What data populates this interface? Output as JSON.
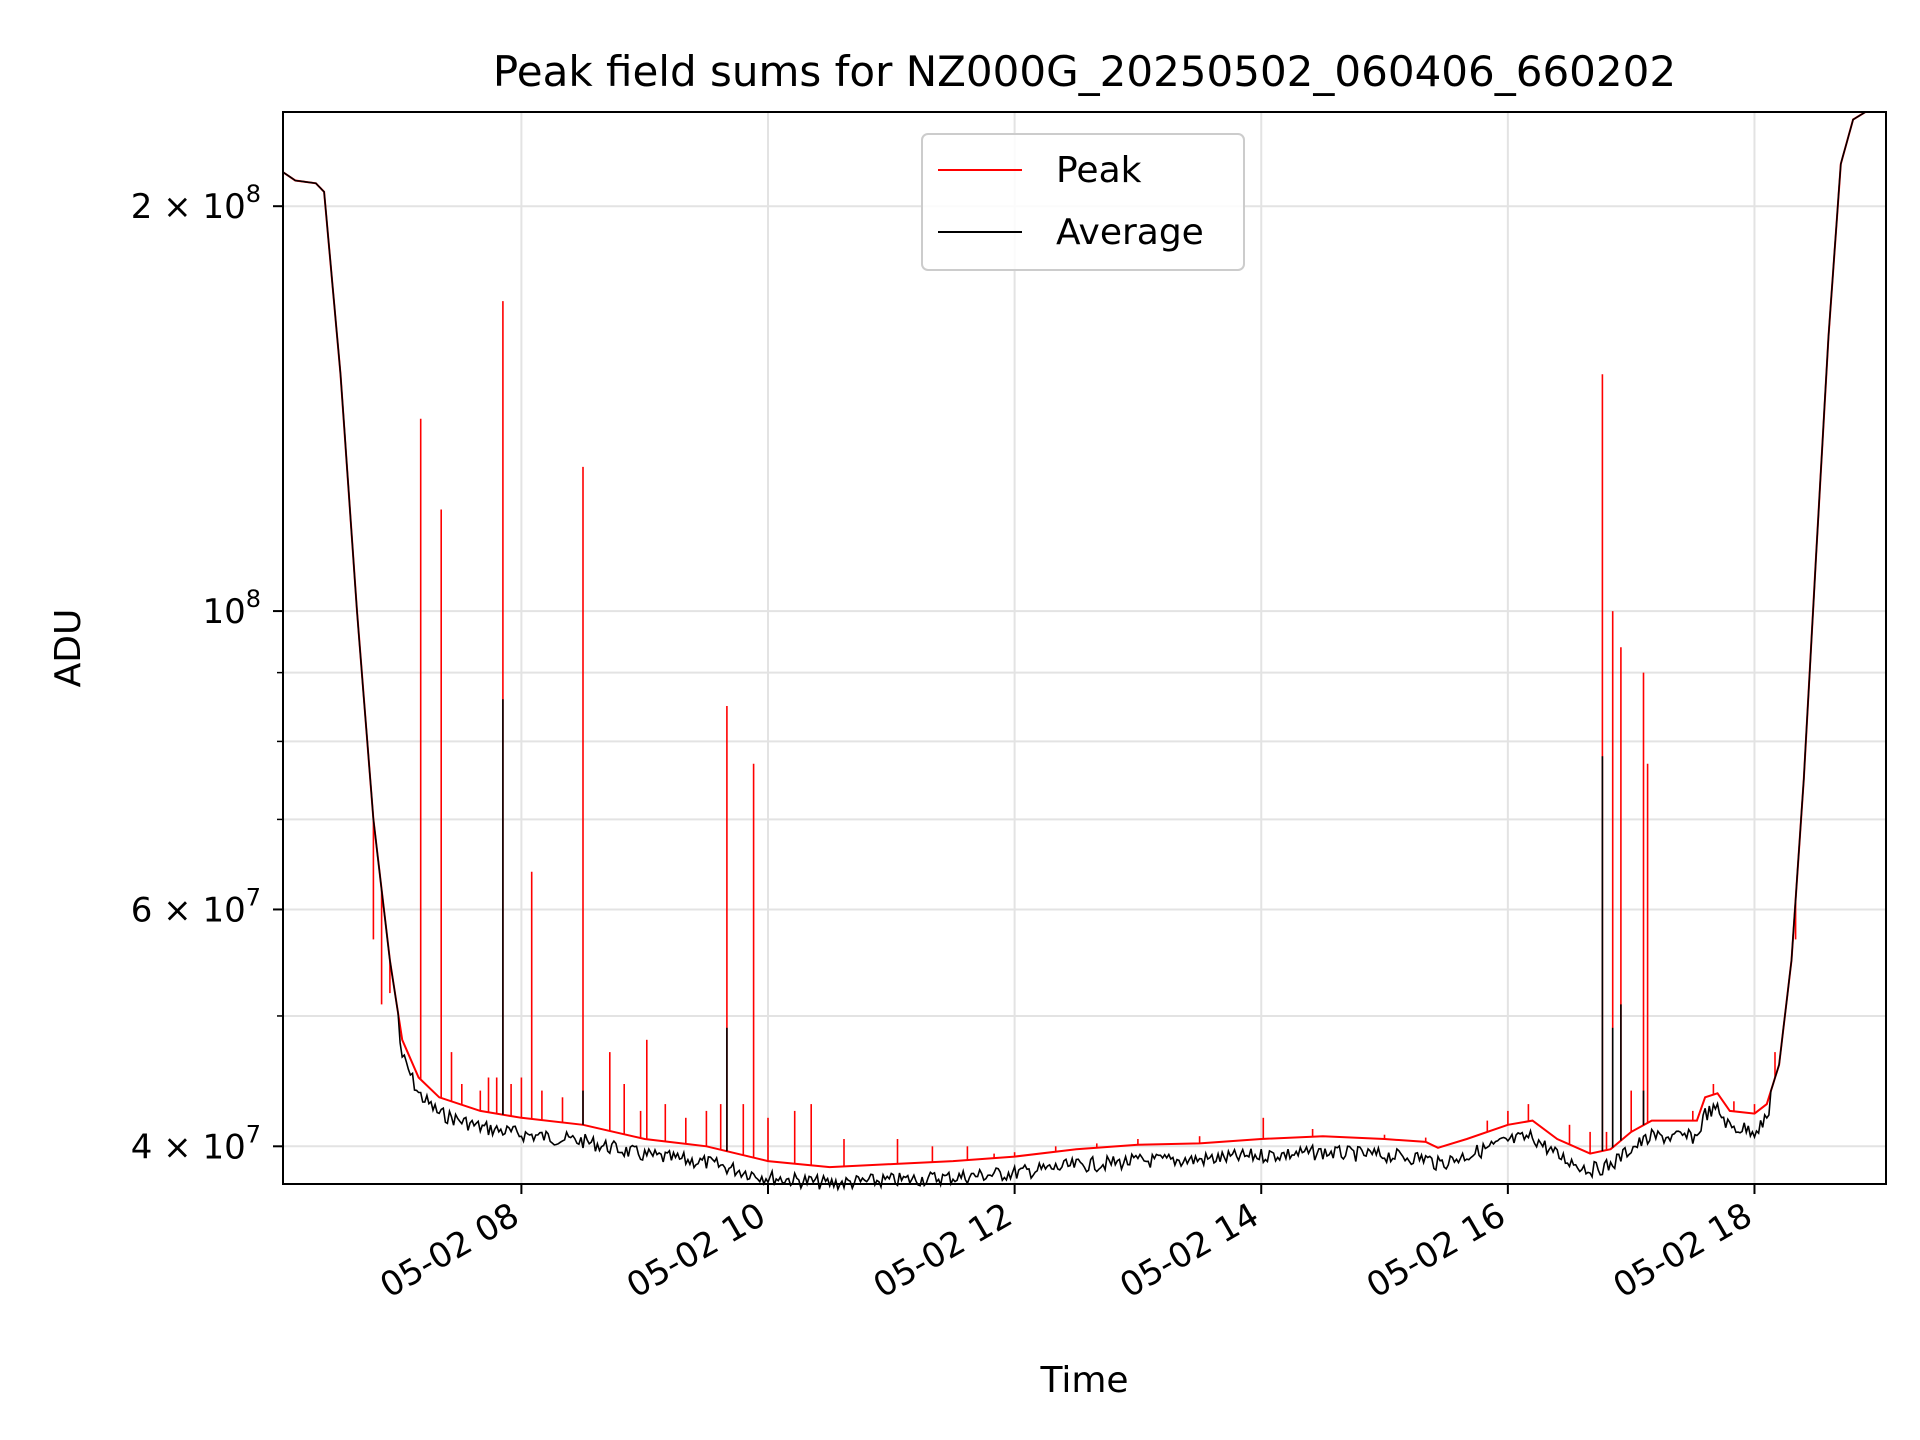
{
  "chart_data": {
    "type": "line",
    "title": "Peak field sums for NZ000G_20250502_060406_660202",
    "xlabel": "Time",
    "ylabel": "ADU",
    "x_ticks": [
      {
        "time": "05-02 08",
        "label": "05-02 08"
      },
      {
        "time": "05-02 10",
        "label": "05-02 10"
      },
      {
        "time": "05-02 12",
        "label": "05-02 12"
      },
      {
        "time": "05-02 14",
        "label": "05-02 14"
      },
      {
        "time": "05-02 16",
        "label": "05-02 16"
      },
      {
        "time": "05-02 18",
        "label": "05-02 18"
      }
    ],
    "xlim": [
      "05-02 06:04",
      "05-02 19:04"
    ],
    "y_scale": "log",
    "ylim": [
      37500000,
      235000000
    ],
    "y_ticks_major": [
      {
        "value": 40000000,
        "base": "4 × 10",
        "exp": "7"
      },
      {
        "value": 60000000,
        "base": "6 × 10",
        "exp": "7"
      },
      {
        "value": 100000000,
        "base": "10",
        "exp": "8"
      },
      {
        "value": 200000000,
        "base": "2 × 10",
        "exp": "8"
      }
    ],
    "y_ticks_minor": [
      50000000,
      70000000,
      80000000,
      90000000
    ],
    "grid": true,
    "legend_position": "top-center",
    "series": [
      {
        "name": "Peak",
        "color": "#ff0000",
        "baseline": [
          [
            "05-02 06:04",
            212000000
          ],
          [
            "05-02 06:10",
            209000000
          ],
          [
            "05-02 06:20",
            208000000
          ],
          [
            "05-02 06:24",
            205000000
          ],
          [
            "05-02 06:32",
            150000000
          ],
          [
            "05-02 06:40",
            100000000
          ],
          [
            "05-02 06:48",
            70000000
          ],
          [
            "05-02 06:56",
            55000000
          ],
          [
            "05-02 07:02",
            48000000
          ],
          [
            "05-02 07:10",
            45000000
          ],
          [
            "05-02 07:20",
            43500000
          ],
          [
            "05-02 07:40",
            42500000
          ],
          [
            "05-02 08:00",
            42000000
          ],
          [
            "05-02 08:30",
            41500000
          ],
          [
            "05-02 09:00",
            40500000
          ],
          [
            "05-02 09:30",
            40000000
          ],
          [
            "05-02 10:00",
            39000000
          ],
          [
            "05-02 10:30",
            38600000
          ],
          [
            "05-02 11:00",
            38800000
          ],
          [
            "05-02 11:30",
            39000000
          ],
          [
            "05-02 12:00",
            39300000
          ],
          [
            "05-02 12:30",
            39800000
          ],
          [
            "05-02 13:00",
            40100000
          ],
          [
            "05-02 13:30",
            40200000
          ],
          [
            "05-02 14:00",
            40500000
          ],
          [
            "05-02 14:30",
            40700000
          ],
          [
            "05-02 15:00",
            40500000
          ],
          [
            "05-02 15:20",
            40300000
          ],
          [
            "05-02 15:26",
            39900000
          ],
          [
            "05-02 15:40",
            40500000
          ],
          [
            "05-02 16:00",
            41500000
          ],
          [
            "05-02 16:12",
            41800000
          ],
          [
            "05-02 16:24",
            40500000
          ],
          [
            "05-02 16:40",
            39500000
          ],
          [
            "05-02 16:50",
            39800000
          ],
          [
            "05-02 17:00",
            41000000
          ],
          [
            "05-02 17:10",
            41800000
          ],
          [
            "05-02 17:32",
            41800000
          ],
          [
            "05-02 17:36",
            43500000
          ],
          [
            "05-02 17:42",
            43800000
          ],
          [
            "05-02 17:48",
            42500000
          ],
          [
            "05-02 18:00",
            42300000
          ],
          [
            "05-02 18:06",
            43000000
          ],
          [
            "05-02 18:12",
            46000000
          ],
          [
            "05-02 18:18",
            55000000
          ],
          [
            "05-02 18:24",
            75000000
          ],
          [
            "05-02 18:30",
            110000000
          ],
          [
            "05-02 18:36",
            160000000
          ],
          [
            "05-02 18:42",
            215000000
          ],
          [
            "05-02 18:48",
            232000000
          ],
          [
            "05-02 18:54",
            235000000
          ],
          [
            "05-02 19:04",
            235000000
          ]
        ],
        "spikes": [
          [
            "05-02 06:48",
            57000000
          ],
          [
            "05-02 06:52",
            51000000
          ],
          [
            "05-02 06:56",
            52000000
          ],
          [
            "05-02 07:11",
            139000000
          ],
          [
            "05-02 07:21",
            119000000
          ],
          [
            "05-02 07:26",
            47000000
          ],
          [
            "05-02 07:31",
            44500000
          ],
          [
            "05-02 07:40",
            44000000
          ],
          [
            "05-02 07:44",
            45000000
          ],
          [
            "05-02 07:48",
            45000000
          ],
          [
            "05-02 07:51",
            170000000
          ],
          [
            "05-02 07:55",
            44500000
          ],
          [
            "05-02 08:00",
            45000000
          ],
          [
            "05-02 08:05",
            64000000
          ],
          [
            "05-02 08:10",
            44000000
          ],
          [
            "05-02 08:20",
            43500000
          ],
          [
            "05-02 08:30",
            128000000
          ],
          [
            "05-02 08:43",
            47000000
          ],
          [
            "05-02 08:50",
            44500000
          ],
          [
            "05-02 08:58",
            42500000
          ],
          [
            "05-02 09:01",
            48000000
          ],
          [
            "05-02 09:10",
            43000000
          ],
          [
            "05-02 09:20",
            42000000
          ],
          [
            "05-02 09:30",
            42500000
          ],
          [
            "05-02 09:37",
            43000000
          ],
          [
            "05-02 09:40",
            85000000
          ],
          [
            "05-02 09:48",
            43000000
          ],
          [
            "05-02 09:53",
            77000000
          ],
          [
            "05-02 10:00",
            42000000
          ],
          [
            "05-02 10:13",
            42500000
          ],
          [
            "05-02 10:21",
            43000000
          ],
          [
            "05-02 10:37",
            40500000
          ],
          [
            "05-02 11:03",
            40500000
          ],
          [
            "05-02 11:20",
            40000000
          ],
          [
            "05-02 11:37",
            40000000
          ],
          [
            "05-02 11:50",
            39500000
          ],
          [
            "05-02 12:00",
            39600000
          ],
          [
            "05-02 12:20",
            40000000
          ],
          [
            "05-02 12:40",
            40200000
          ],
          [
            "05-02 13:00",
            40500000
          ],
          [
            "05-02 13:30",
            40700000
          ],
          [
            "05-02 14:01",
            42000000
          ],
          [
            "05-02 14:25",
            41200000
          ],
          [
            "05-02 15:00",
            40800000
          ],
          [
            "05-02 15:20",
            40600000
          ],
          [
            "05-02 15:50",
            41800000
          ],
          [
            "05-02 16:00",
            42500000
          ],
          [
            "05-02 16:10",
            43000000
          ],
          [
            "05-02 16:30",
            41500000
          ],
          [
            "05-02 16:40",
            41000000
          ],
          [
            "05-02 16:46",
            150000000
          ],
          [
            "05-02 16:48",
            41000000
          ],
          [
            "05-02 16:51",
            100000000
          ],
          [
            "05-02 16:55",
            94000000
          ],
          [
            "05-02 17:00",
            44000000
          ],
          [
            "05-02 17:06",
            90000000
          ],
          [
            "05-02 17:08",
            77000000
          ],
          [
            "05-02 17:30",
            42500000
          ],
          [
            "05-02 17:40",
            44500000
          ],
          [
            "05-02 17:50",
            43200000
          ],
          [
            "05-02 18:00",
            43000000
          ],
          [
            "05-02 18:10",
            47000000
          ],
          [
            "05-02 18:20",
            57000000
          ]
        ]
      },
      {
        "name": "Average",
        "color": "#000000",
        "spikes": [
          [
            "05-02 07:51",
            86000000
          ],
          [
            "05-02 08:30",
            44000000
          ],
          [
            "05-02 09:40",
            49000000
          ],
          [
            "05-02 16:46",
            78000000
          ],
          [
            "05-02 16:51",
            49000000
          ],
          [
            "05-02 16:55",
            51000000
          ],
          [
            "05-02 17:06",
            44000000
          ]
        ]
      }
    ]
  }
}
